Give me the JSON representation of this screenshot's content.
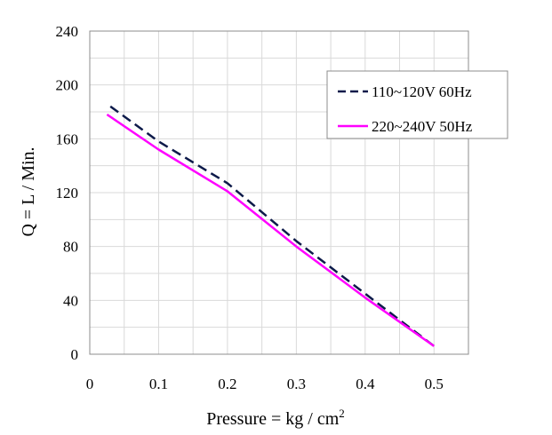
{
  "chart_data": {
    "type": "line",
    "title": "",
    "xlabel": "Pressure = kg / cm",
    "xlabel_superscript": "2",
    "ylabel": "Q = L / Min.",
    "xlim": [
      0,
      0.55
    ],
    "ylim": [
      0,
      240
    ],
    "x_ticks": [
      0,
      0.1,
      0.2,
      0.3,
      0.4,
      0.5
    ],
    "x_tick_labels": [
      "0",
      "0.1",
      "0.2",
      "0.3",
      "0.4",
      "0.5"
    ],
    "y_ticks": [
      0,
      40,
      80,
      120,
      160,
      200,
      240
    ],
    "y_tick_labels": [
      "0",
      "40",
      "80",
      "120",
      "160",
      "200",
      "240"
    ],
    "grid": true,
    "legend_position": "top-right",
    "series": [
      {
        "name": "110~120V 60Hz",
        "color": "#0d1a4a",
        "style": "dashed",
        "x": [
          0.03,
          0.1,
          0.2,
          0.3,
          0.4,
          0.5
        ],
        "y": [
          184,
          158,
          127,
          84,
          45,
          6
        ]
      },
      {
        "name": "220~240V 50Hz",
        "color": "#ff00ff",
        "style": "solid",
        "x": [
          0.025,
          0.1,
          0.2,
          0.3,
          0.4,
          0.5
        ],
        "y": [
          178,
          152,
          121,
          80,
          42,
          6
        ]
      }
    ]
  }
}
